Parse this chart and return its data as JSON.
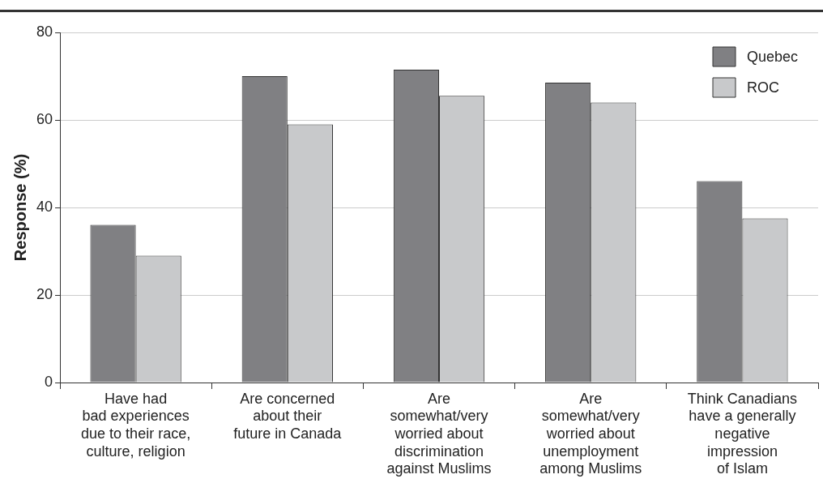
{
  "chart_data": {
    "type": "bar",
    "ylabel": "Response (%)",
    "categories": [
      "Have had\nbad experiences\ndue to their race,\nculture, religion",
      "Are concerned\nabout their\nfuture in Canada",
      "Are\nsomewhat/very\nworried about\ndiscrimination\nagainst Muslims",
      "Are\nsomewhat/very\nworried about\nunemployment\namong Muslims",
      "Think Canadians\nhave a generally\nnegative\nimpression\nof Islam"
    ],
    "series": [
      {
        "name": "Quebec",
        "color": "#808083",
        "values": [
          36,
          70,
          71.5,
          68.5,
          46
        ]
      },
      {
        "name": "ROC",
        "color": "#c8c9cb",
        "values": [
          29,
          59,
          65.5,
          64,
          37.5
        ]
      }
    ],
    "ylim": [
      0,
      80
    ],
    "yticks": [
      0,
      20,
      40,
      60,
      80
    ],
    "grid": "y",
    "legend": "top right"
  }
}
